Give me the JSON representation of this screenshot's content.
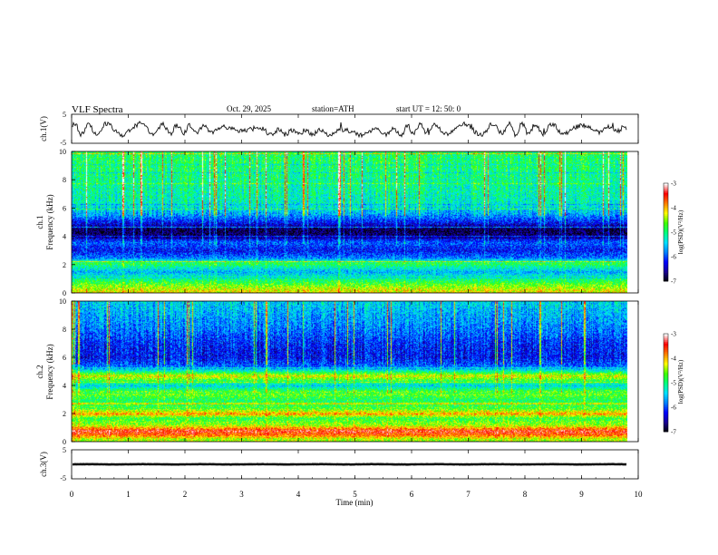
{
  "header": {
    "title": "VLF  Spectra",
    "date": "Oct. 29, 2025",
    "station": "station=ATH",
    "start": "start  UT  =    12: 50: 0"
  },
  "colors": {
    "waveform": "#111111",
    "colormap": [
      "#000000",
      "#1a0090",
      "#0000ff",
      "#0080ff",
      "#00e0ff",
      "#00ff80",
      "#40ff00",
      "#ffff00",
      "#ff8000",
      "#ff0000",
      "#ffffff"
    ]
  },
  "chart_data": [
    {
      "type": "line",
      "name": "ch1-waveform",
      "ylabel": "ch.1(V)",
      "ylim": [
        -5,
        5
      ],
      "yticks": [
        "5",
        "-5"
      ],
      "xlim": [
        0,
        10
      ],
      "x_end_min": 9.8,
      "description_values": {
        "baseline_v": 1.0,
        "amplitude_v": 1.8
      }
    },
    {
      "type": "heatmap",
      "name": "ch1-spectrogram",
      "ylabel_channel": "ch.1",
      "ylabel": "Frequency  (kHz)",
      "ylim": [
        0,
        10
      ],
      "yticks": [
        "0",
        "2",
        "4",
        "6",
        "8",
        "10"
      ],
      "x_end_min": 9.8,
      "bands": [
        {
          "f": 0.2,
          "level": -4.2
        },
        {
          "f": 0.6,
          "level": -4.6
        },
        {
          "f": 1.0,
          "level": -5.0
        },
        {
          "f": 1.5,
          "level": -5.6
        },
        {
          "f": 2.1,
          "level": -4.8
        },
        {
          "f": 2.5,
          "level": -5.8
        },
        {
          "f": 3.0,
          "level": -6.2
        },
        {
          "f": 3.6,
          "level": -5.9
        },
        {
          "f": 4.1,
          "level": -6.7
        },
        {
          "f": 4.5,
          "level": -6.8
        },
        {
          "f": 5.0,
          "level": -6.2
        },
        {
          "f": 5.6,
          "level": -5.6
        },
        {
          "f": 6.3,
          "level": -5.2
        },
        {
          "f": 7.2,
          "level": -5.1
        },
        {
          "f": 8.2,
          "level": -5.0
        },
        {
          "f": 9.2,
          "level": -4.9
        },
        {
          "f": 10.0,
          "level": -4.9
        }
      ],
      "colorbar": {
        "label": "log(PSD)(V²/Hz)",
        "ticks": [
          "-3",
          "-4",
          "-5",
          "-6",
          "-7"
        ],
        "range": [
          -7,
          -3
        ]
      }
    },
    {
      "type": "heatmap",
      "name": "ch2-spectrogram",
      "ylabel_channel": "ch.2",
      "ylabel": "Frequency  (kHz)",
      "ylim": [
        0,
        10
      ],
      "yticks": [
        "0",
        "2",
        "4",
        "6",
        "8",
        "10"
      ],
      "x_end_min": 9.8,
      "bands": [
        {
          "f": 0.2,
          "level": -4.4
        },
        {
          "f": 0.5,
          "level": -3.7
        },
        {
          "f": 0.8,
          "level": -3.4
        },
        {
          "f": 1.2,
          "level": -4.4
        },
        {
          "f": 1.7,
          "level": -4.8
        },
        {
          "f": 2.0,
          "level": -3.9
        },
        {
          "f": 2.4,
          "level": -4.7
        },
        {
          "f": 3.0,
          "level": -4.9
        },
        {
          "f": 3.5,
          "level": -4.5
        },
        {
          "f": 4.0,
          "level": -5.4
        },
        {
          "f": 4.7,
          "level": -4.2
        },
        {
          "f": 5.3,
          "level": -5.8
        },
        {
          "f": 6.0,
          "level": -6.2
        },
        {
          "f": 7.0,
          "level": -6.1
        },
        {
          "f": 8.0,
          "level": -5.8
        },
        {
          "f": 9.0,
          "level": -5.6
        },
        {
          "f": 10.0,
          "level": -5.4
        }
      ],
      "colorbar": {
        "label": "log(PSD)(V²/Hz)",
        "ticks": [
          "-3",
          "-4",
          "-5",
          "-6",
          "-7"
        ],
        "range": [
          -7,
          -3
        ]
      }
    },
    {
      "type": "line",
      "name": "ch3-waveform",
      "ylabel": "ch.3(V)",
      "ylim": [
        -5,
        5
      ],
      "yticks": [
        "5",
        "-5"
      ],
      "xlim": [
        0,
        10
      ],
      "x_end_min": 9.8,
      "description_values": {
        "baseline_v": 0.0,
        "amplitude_v": 0.15
      }
    }
  ],
  "xaxis": {
    "label": "Time  (min)",
    "ticks": [
      "0",
      "1",
      "2",
      "3",
      "4",
      "5",
      "6",
      "7",
      "8",
      "9",
      "10"
    ],
    "range": [
      0,
      10
    ]
  }
}
